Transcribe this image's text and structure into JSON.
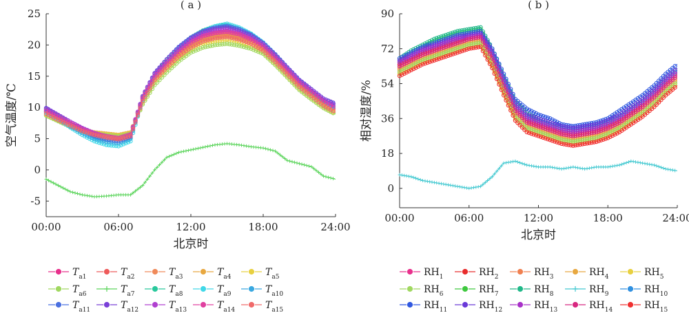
{
  "chart_data": [
    {
      "type": "line",
      "panel_label": "( a )",
      "xlabel": "北京时",
      "ylabel": "空气温度/℃",
      "xticks": [
        "00:00",
        "06:00",
        "12:00",
        "18:00",
        "24:00"
      ],
      "yticks": [
        "-5",
        "0",
        "5",
        "10",
        "15",
        "20",
        "25"
      ],
      "ylim": [
        -7.5,
        25
      ],
      "xlim": [
        0,
        24
      ],
      "legend_position": "bottom",
      "x": [
        0,
        1,
        2,
        3,
        4,
        5,
        6,
        7,
        8,
        9,
        10,
        11,
        12,
        13,
        14,
        15,
        16,
        17,
        18,
        19,
        20,
        21,
        22,
        23,
        24
      ],
      "series": [
        {
          "name": "Ta1",
          "label_main": "T",
          "label_sub": "a1",
          "color": "#e8308c",
          "values": [
            9.5,
            8.5,
            7.5,
            6.5,
            5.8,
            5.4,
            5.0,
            5.6,
            11.5,
            15.0,
            17.0,
            19.0,
            20.5,
            21.5,
            22.0,
            22.2,
            21.8,
            21.0,
            19.8,
            18.0,
            16.0,
            14.0,
            12.5,
            11.0,
            9.8
          ]
        },
        {
          "name": "Ta2",
          "label_main": "T",
          "label_sub": "a2",
          "color": "#ee5a5a",
          "values": [
            9.3,
            8.3,
            7.4,
            6.4,
            5.8,
            5.4,
            5.0,
            5.6,
            11.3,
            14.8,
            16.9,
            18.8,
            20.3,
            21.3,
            21.8,
            22.0,
            21.6,
            20.8,
            19.6,
            17.8,
            15.8,
            13.8,
            12.3,
            10.8,
            9.6
          ]
        },
        {
          "name": "Ta3",
          "label_main": "T",
          "label_sub": "a3",
          "color": "#f08a5a",
          "values": [
            9.2,
            8.2,
            7.3,
            6.3,
            5.9,
            5.6,
            5.3,
            5.8,
            11.2,
            14.6,
            16.7,
            18.6,
            20.0,
            21.0,
            21.5,
            21.7,
            21.3,
            20.6,
            19.4,
            17.6,
            15.6,
            13.6,
            12.1,
            10.6,
            9.4
          ]
        },
        {
          "name": "Ta4",
          "label_main": "T",
          "label_sub": "a4",
          "color": "#e8a840",
          "values": [
            9.0,
            8.0,
            7.2,
            6.4,
            6.0,
            5.8,
            5.6,
            6.0,
            11.0,
            14.4,
            16.4,
            18.3,
            19.8,
            20.8,
            21.3,
            21.5,
            21.1,
            20.3,
            19.2,
            17.4,
            15.4,
            13.4,
            11.9,
            10.4,
            9.2
          ]
        },
        {
          "name": "Ta5",
          "label_main": "T",
          "label_sub": "a5",
          "color": "#e8d040",
          "values": [
            8.8,
            7.9,
            7.0,
            6.2,
            5.9,
            5.7,
            5.5,
            5.9,
            10.7,
            14.0,
            16.0,
            17.8,
            19.2,
            20.2,
            20.6,
            20.8,
            20.4,
            19.7,
            18.8,
            17.0,
            15.0,
            13.0,
            11.5,
            10.1,
            9.0
          ]
        },
        {
          "name": "Ta6",
          "label_main": "T",
          "label_sub": "a6",
          "color": "#a0d860",
          "values": [
            8.7,
            7.8,
            6.9,
            6.1,
            5.8,
            5.6,
            5.4,
            5.8,
            10.5,
            13.6,
            15.6,
            17.4,
            18.8,
            19.6,
            20.0,
            20.2,
            19.9,
            19.4,
            18.6,
            16.8,
            14.8,
            12.8,
            11.3,
            9.9,
            8.9
          ]
        },
        {
          "name": "Ta7",
          "label_main": "T",
          "label_sub": "a7",
          "color": "#5ad45a",
          "values": [
            -1.5,
            -2.5,
            -3.5,
            -4.0,
            -4.3,
            -4.2,
            -4.0,
            -4.0,
            -2.5,
            0.0,
            2.0,
            2.8,
            3.2,
            3.6,
            4.0,
            4.2,
            4.0,
            3.7,
            3.5,
            3.0,
            1.5,
            1.0,
            0.5,
            -1.0,
            -1.5
          ]
        },
        {
          "name": "Ta8",
          "label_main": "T",
          "label_sub": "a8",
          "color": "#28c89c",
          "values": [
            9.6,
            8.6,
            7.4,
            6.2,
            5.2,
            4.8,
            4.6,
            5.2,
            11.6,
            15.3,
            17.6,
            19.6,
            21.2,
            22.3,
            23.0,
            23.2,
            22.6,
            21.6,
            20.2,
            18.3,
            16.2,
            14.2,
            12.6,
            11.1,
            10.0
          ]
        },
        {
          "name": "Ta9",
          "label_main": "T",
          "label_sub": "a9",
          "color": "#40d8e8",
          "values": [
            9.2,
            8.1,
            6.8,
            5.6,
            4.6,
            4.0,
            3.8,
            4.6,
            11.2,
            15.0,
            17.4,
            19.5,
            21.1,
            22.2,
            23.0,
            23.4,
            22.8,
            21.8,
            20.4,
            18.5,
            16.4,
            14.3,
            12.7,
            11.2,
            9.8
          ]
        },
        {
          "name": "Ta10",
          "label_main": "T",
          "label_sub": "a10",
          "color": "#3aa8e0",
          "values": [
            9.4,
            8.3,
            7.0,
            5.9,
            5.0,
            4.5,
            4.3,
            5.0,
            11.4,
            15.1,
            17.4,
            19.4,
            21.0,
            22.1,
            22.8,
            23.1,
            22.6,
            21.7,
            20.3,
            18.4,
            16.3,
            14.3,
            12.7,
            11.2,
            10.0
          ]
        },
        {
          "name": "Ta11",
          "label_main": "T",
          "label_sub": "a11",
          "color": "#4a70e0",
          "values": [
            9.8,
            8.7,
            7.5,
            6.3,
            5.4,
            4.9,
            4.6,
            5.3,
            11.7,
            15.4,
            17.7,
            19.7,
            21.2,
            22.2,
            22.8,
            23.0,
            22.5,
            21.6,
            20.3,
            18.5,
            16.4,
            14.4,
            12.9,
            11.4,
            10.4
          ]
        },
        {
          "name": "Ta12",
          "label_main": "T",
          "label_sub": "a12",
          "color": "#7a40d8",
          "values": [
            9.9,
            8.8,
            7.7,
            6.6,
            5.7,
            5.2,
            4.9,
            5.5,
            11.8,
            15.5,
            17.7,
            19.6,
            21.1,
            22.1,
            22.6,
            22.8,
            22.3,
            21.5,
            20.2,
            18.4,
            16.4,
            14.4,
            12.9,
            11.4,
            10.6
          ]
        },
        {
          "name": "Ta13",
          "label_main": "T",
          "label_sub": "a13",
          "color": "#b040d0",
          "values": [
            9.7,
            8.7,
            7.7,
            6.7,
            5.9,
            5.4,
            5.1,
            5.7,
            11.7,
            15.3,
            17.4,
            19.3,
            20.8,
            21.8,
            22.3,
            22.5,
            22.0,
            21.2,
            20.0,
            18.2,
            16.2,
            14.2,
            12.7,
            11.2,
            10.2
          ]
        },
        {
          "name": "Ta14",
          "label_main": "T",
          "label_sub": "a14",
          "color": "#e040a0",
          "values": [
            9.4,
            8.4,
            7.5,
            6.5,
            5.8,
            5.4,
            5.1,
            5.7,
            11.4,
            14.9,
            17.0,
            18.9,
            20.4,
            21.4,
            21.9,
            22.1,
            21.7,
            20.9,
            19.7,
            17.9,
            15.9,
            13.9,
            12.4,
            10.9,
            9.8
          ]
        },
        {
          "name": "Ta15",
          "label_main": "T",
          "label_sub": "a15",
          "color": "#f06a6a",
          "values": [
            9.0,
            8.0,
            7.1,
            6.2,
            5.6,
            5.2,
            4.9,
            5.4,
            11.0,
            14.4,
            16.4,
            18.2,
            19.6,
            20.6,
            21.1,
            21.3,
            20.9,
            20.2,
            19.1,
            17.3,
            15.3,
            13.3,
            11.8,
            10.3,
            9.2
          ]
        }
      ]
    },
    {
      "type": "line",
      "panel_label": "( b )",
      "xlabel": "北京时",
      "ylabel": "相对湿度/%",
      "xticks": [
        "00:00",
        "06:00",
        "12:00",
        "18:00",
        "24:00"
      ],
      "yticks": [
        "0",
        "18",
        "36",
        "54",
        "72",
        "90"
      ],
      "ylim": [
        -10,
        90
      ],
      "xlim": [
        0,
        24
      ],
      "legend_position": "bottom",
      "x": [
        0,
        1,
        2,
        3,
        4,
        5,
        6,
        7,
        8,
        9,
        10,
        11,
        12,
        13,
        14,
        15,
        16,
        17,
        18,
        19,
        20,
        21,
        22,
        23,
        24
      ],
      "series": [
        {
          "name": "RH1",
          "label_main": "RH",
          "label_sub": "1",
          "color": "#e8308c",
          "values": [
            64,
            67,
            70,
            72,
            74,
            76,
            78,
            79,
            69,
            55,
            42,
            36,
            34,
            32,
            30,
            29,
            30,
            31,
            33,
            36,
            40,
            44,
            49,
            55,
            60
          ]
        },
        {
          "name": "RH2",
          "label_main": "RH",
          "label_sub": "2",
          "color": "#e82c2c",
          "values": [
            64,
            67,
            70,
            72,
            74,
            76,
            78,
            79,
            68,
            54,
            41,
            35,
            33,
            31,
            29,
            28,
            29,
            30,
            32,
            35,
            39,
            43,
            48,
            54,
            59
          ]
        },
        {
          "name": "RH3",
          "label_main": "RH",
          "label_sub": "3",
          "color": "#f08050",
          "values": [
            62,
            65,
            68,
            70,
            72,
            74,
            76,
            77,
            66,
            52,
            39,
            33,
            31,
            29,
            27,
            26,
            27,
            28,
            30,
            33,
            37,
            41,
            46,
            52,
            57
          ]
        },
        {
          "name": "RH4",
          "label_main": "RH",
          "label_sub": "4",
          "color": "#e8a840",
          "values": [
            61,
            64,
            67,
            69,
            71,
            73,
            75,
            76,
            65,
            51,
            38,
            32,
            30,
            28,
            26,
            25,
            26,
            27,
            29,
            32,
            36,
            40,
            45,
            51,
            56
          ]
        },
        {
          "name": "RH5",
          "label_main": "RH",
          "label_sub": "5",
          "color": "#e8d040",
          "values": [
            59,
            62,
            65,
            67,
            69,
            71,
            73,
            74,
            63,
            49,
            36,
            30,
            28,
            26,
            24,
            23,
            24,
            25,
            27,
            30,
            34,
            38,
            43,
            49,
            54
          ]
        },
        {
          "name": "RH6",
          "label_main": "RH",
          "label_sub": "6",
          "color": "#a0d860",
          "values": [
            60,
            63,
            66,
            68,
            70,
            72,
            74,
            75,
            64,
            50,
            37,
            31,
            29,
            27,
            25,
            24,
            25,
            26,
            28,
            31,
            35,
            39,
            44,
            50,
            55
          ]
        },
        {
          "name": "RH7",
          "label_main": "RH",
          "label_sub": "7",
          "color": "#3ec83e",
          "values": [
            66,
            70,
            73,
            76,
            78,
            80,
            81,
            82,
            71,
            57,
            44,
            38,
            35,
            33,
            31,
            30,
            31,
            32,
            34,
            37,
            41,
            45,
            50,
            56,
            61
          ]
        },
        {
          "name": "RH8",
          "label_main": "RH",
          "label_sub": "8",
          "color": "#20b888",
          "values": [
            67,
            71,
            74,
            77,
            79,
            81,
            82,
            83,
            72,
            58,
            45,
            39,
            36,
            34,
            32,
            31,
            32,
            33,
            35,
            38,
            42,
            46,
            51,
            57,
            62
          ]
        },
        {
          "name": "RH9",
          "label_main": "RH",
          "label_sub": "9",
          "color": "#40c8d0",
          "values": [
            7,
            6,
            4,
            3,
            2,
            1,
            0,
            1,
            6,
            13,
            14,
            12,
            11,
            11,
            10,
            11,
            10,
            11,
            11,
            12,
            14,
            13,
            12,
            10,
            9
          ]
        },
        {
          "name": "RH10",
          "label_main": "RH",
          "label_sub": "10",
          "color": "#3090e0",
          "values": [
            65,
            68,
            71,
            73,
            75,
            77,
            79,
            80,
            70,
            56,
            43,
            37,
            35,
            33,
            31,
            30,
            31,
            32,
            34,
            37,
            41,
            45,
            50,
            56,
            61
          ]
        },
        {
          "name": "RH11",
          "label_main": "RH",
          "label_sub": "11",
          "color": "#3058e0",
          "values": [
            67,
            70,
            73,
            75,
            77,
            79,
            80,
            81,
            72,
            59,
            46,
            41,
            38,
            36,
            33,
            32,
            33,
            34,
            36,
            40,
            44,
            48,
            53,
            59,
            64
          ]
        },
        {
          "name": "RH12",
          "label_main": "RH",
          "label_sub": "12",
          "color": "#6a3ad8",
          "values": [
            66,
            69,
            72,
            74,
            76,
            78,
            79,
            80,
            71,
            57,
            44,
            38,
            36,
            34,
            32,
            31,
            32,
            33,
            35,
            38,
            42,
            46,
            51,
            57,
            62
          ]
        },
        {
          "name": "RH13",
          "label_main": "RH",
          "label_sub": "13",
          "color": "#a830c8",
          "values": [
            65,
            68,
            71,
            73,
            75,
            77,
            78,
            79,
            69,
            55,
            42,
            36,
            34,
            32,
            30,
            29,
            30,
            31,
            33,
            36,
            40,
            44,
            49,
            55,
            60
          ]
        },
        {
          "name": "RH14",
          "label_main": "RH",
          "label_sub": "14",
          "color": "#d82880",
          "values": [
            63,
            66,
            69,
            71,
            73,
            75,
            77,
            78,
            67,
            53,
            40,
            34,
            32,
            30,
            28,
            27,
            28,
            29,
            31,
            34,
            38,
            42,
            47,
            53,
            58
          ]
        },
        {
          "name": "RH15",
          "label_main": "RH",
          "label_sub": "15",
          "color": "#f03030",
          "values": [
            58,
            61,
            64,
            66,
            68,
            70,
            72,
            73,
            62,
            48,
            35,
            29,
            27,
            25,
            23,
            22,
            23,
            24,
            26,
            29,
            33,
            37,
            42,
            48,
            53
          ]
        }
      ]
    }
  ]
}
